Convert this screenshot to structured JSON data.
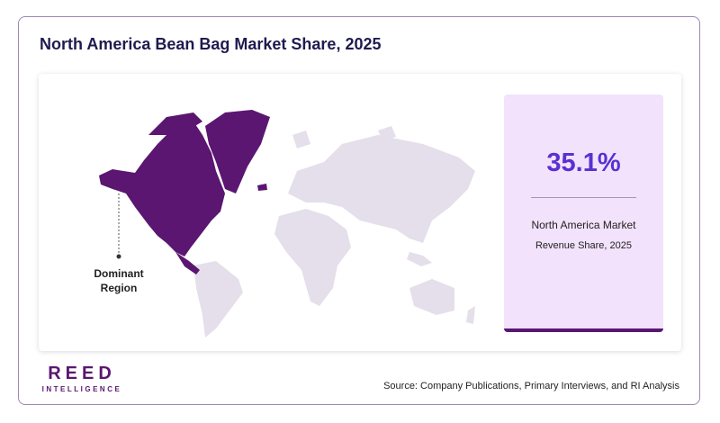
{
  "header": {
    "title": "North America Bean Bag Market Share, 2025"
  },
  "map": {
    "callout": [
      "Dominant",
      "Region"
    ]
  },
  "stat": {
    "value": "35.1%",
    "label": "North America Market",
    "sublabel": "Revenue Share, 2025"
  },
  "footer": {
    "logo": "REED",
    "logo_sub": "INTELLIGENCE",
    "source": "Source: Company Publications, Primary Interviews, and RI Analysis"
  }
}
